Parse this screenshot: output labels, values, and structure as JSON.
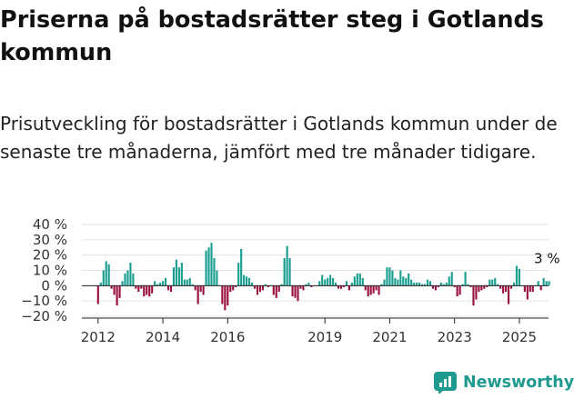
{
  "title": "Priserna på bostadsrätter steg i Gotlands kommun",
  "subtitle": "Prisutveckling för bostadsrätter i Gotlands kommun under de senaste tre månaderna, jämfört med tre månader tidigare.",
  "brand": {
    "name": "Newsworthy",
    "color": "#1e9a8f"
  },
  "chart_data": {
    "type": "bar",
    "title": "",
    "xlabel": "",
    "ylabel": "",
    "ylim": [
      -20,
      40
    ],
    "y_ticks": [
      -20,
      -10,
      0,
      10,
      20,
      30,
      40
    ],
    "y_tick_labels": [
      "−20 %",
      "−10 %",
      "0 %",
      "10 %",
      "20 %",
      "30 %",
      "40 %"
    ],
    "x_ticks": [
      2012,
      2014,
      2016,
      2019,
      2021,
      2023,
      2025
    ],
    "x_tick_labels": [
      "2012",
      "2014",
      "2016",
      "2019",
      "2021",
      "2023",
      "2025"
    ],
    "positive_color": "#1a9e8f",
    "negative_color": "#9a1040",
    "grid": true,
    "annotation": {
      "text": "3 %",
      "target": "last_value"
    },
    "series": [
      {
        "start": "2012-01",
        "frequency": "monthly",
        "values": [
          -12,
          2,
          10,
          16,
          14,
          -2,
          -6,
          -13,
          -8,
          3,
          8,
          10,
          15,
          8,
          -2,
          -4,
          -2,
          -7,
          -6,
          -7,
          -5,
          3,
          1,
          2,
          3,
          5,
          -3,
          -4,
          12,
          17,
          12,
          15,
          4,
          4,
          5,
          1,
          -3,
          -12,
          -4,
          -6,
          23,
          25,
          28,
          18,
          10,
          0,
          -12,
          -16,
          -13,
          -4,
          -3,
          -1,
          15,
          24,
          7,
          6,
          5,
          2,
          -2,
          -6,
          -4,
          -3,
          1,
          -1,
          0,
          -6,
          -8,
          -4,
          1,
          18,
          26,
          18,
          -7,
          -8,
          -10,
          -2,
          -3,
          1,
          2,
          -1,
          0,
          0,
          3,
          7,
          4,
          5,
          7,
          5,
          2,
          -2,
          -2,
          -1,
          3,
          -3,
          2,
          6,
          8,
          8,
          5,
          -3,
          -7,
          -6,
          -5,
          -3,
          -6,
          1,
          4,
          12,
          12,
          10,
          5,
          4,
          10,
          6,
          5,
          8,
          4,
          2,
          2,
          2,
          1,
          1,
          4,
          3,
          -2,
          -3,
          -1,
          2,
          1,
          2,
          6,
          9,
          -1,
          -7,
          -6,
          1,
          9,
          1,
          -1,
          -13,
          -9,
          -4,
          -3,
          -2,
          -1,
          4,
          4,
          5,
          1,
          -2,
          -5,
          -4,
          -12,
          -2,
          2,
          13,
          11,
          0,
          -4,
          -9,
          -4,
          -4,
          0,
          3,
          -3,
          5,
          3,
          3
        ]
      }
    ]
  }
}
